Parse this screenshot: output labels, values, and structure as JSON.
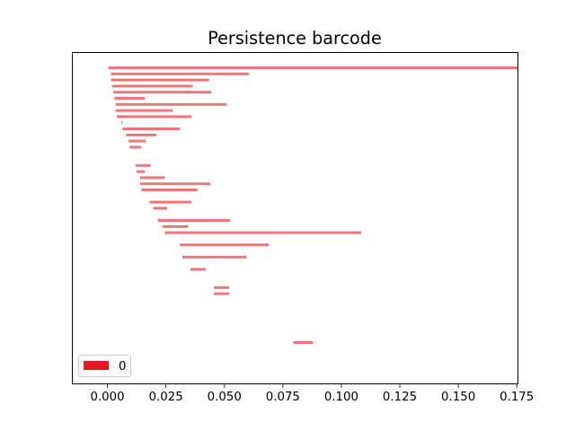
{
  "chart_data": {
    "type": "barcode",
    "title": "Persistence barcode",
    "xlabel": "",
    "ylabel": "",
    "xlim": [
      -0.015,
      0.1755
    ],
    "xticks": [
      0.0,
      0.025,
      0.05,
      0.075,
      0.1,
      0.125,
      0.15,
      0.175
    ],
    "xtick_labels": [
      "0.000",
      "0.025",
      "0.050",
      "0.075",
      "0.100",
      "0.125",
      "0.150",
      "0.175"
    ],
    "bar_color": "#e41a1c",
    "bar_alpha": 0.6,
    "legend": [
      {
        "label": "0",
        "color": "#e41a1c"
      }
    ],
    "legend_position": "lower-left",
    "bars": [
      {
        "birth": 0.0005,
        "death": 0.1755
      },
      {
        "birth": 0.0015,
        "death": 0.0605
      },
      {
        "birth": 0.0015,
        "death": 0.0435
      },
      {
        "birth": 0.002,
        "death": 0.0365
      },
      {
        "birth": 0.0025,
        "death": 0.0445
      },
      {
        "birth": 0.003,
        "death": 0.016
      },
      {
        "birth": 0.0035,
        "death": 0.051
      },
      {
        "birth": 0.0035,
        "death": 0.028
      },
      {
        "birth": 0.004,
        "death": 0.036
      },
      {
        "birth": 0.006,
        "death": 0.0065
      },
      {
        "birth": 0.0065,
        "death": 0.031
      },
      {
        "birth": 0.008,
        "death": 0.021
      },
      {
        "birth": 0.009,
        "death": 0.0165
      },
      {
        "birth": 0.0095,
        "death": 0.0145
      },
      {
        "birth": 0.012,
        "death": 0.0185
      },
      {
        "birth": 0.0125,
        "death": 0.016
      },
      {
        "birth": 0.014,
        "death": 0.0245
      },
      {
        "birth": 0.014,
        "death": 0.044
      },
      {
        "birth": 0.0145,
        "death": 0.0385
      },
      {
        "birth": 0.018,
        "death": 0.036
      },
      {
        "birth": 0.0195,
        "death": 0.0255
      },
      {
        "birth": 0.0215,
        "death": 0.0525
      },
      {
        "birth": 0.0235,
        "death": 0.0345
      },
      {
        "birth": 0.0245,
        "death": 0.1085
      },
      {
        "birth": 0.031,
        "death": 0.069
      },
      {
        "birth": 0.032,
        "death": 0.0595
      },
      {
        "birth": 0.0355,
        "death": 0.042
      },
      {
        "birth": 0.0455,
        "death": 0.052
      },
      {
        "birth": 0.0455,
        "death": 0.052
      },
      {
        "birth": 0.0795,
        "death": 0.088
      }
    ]
  }
}
